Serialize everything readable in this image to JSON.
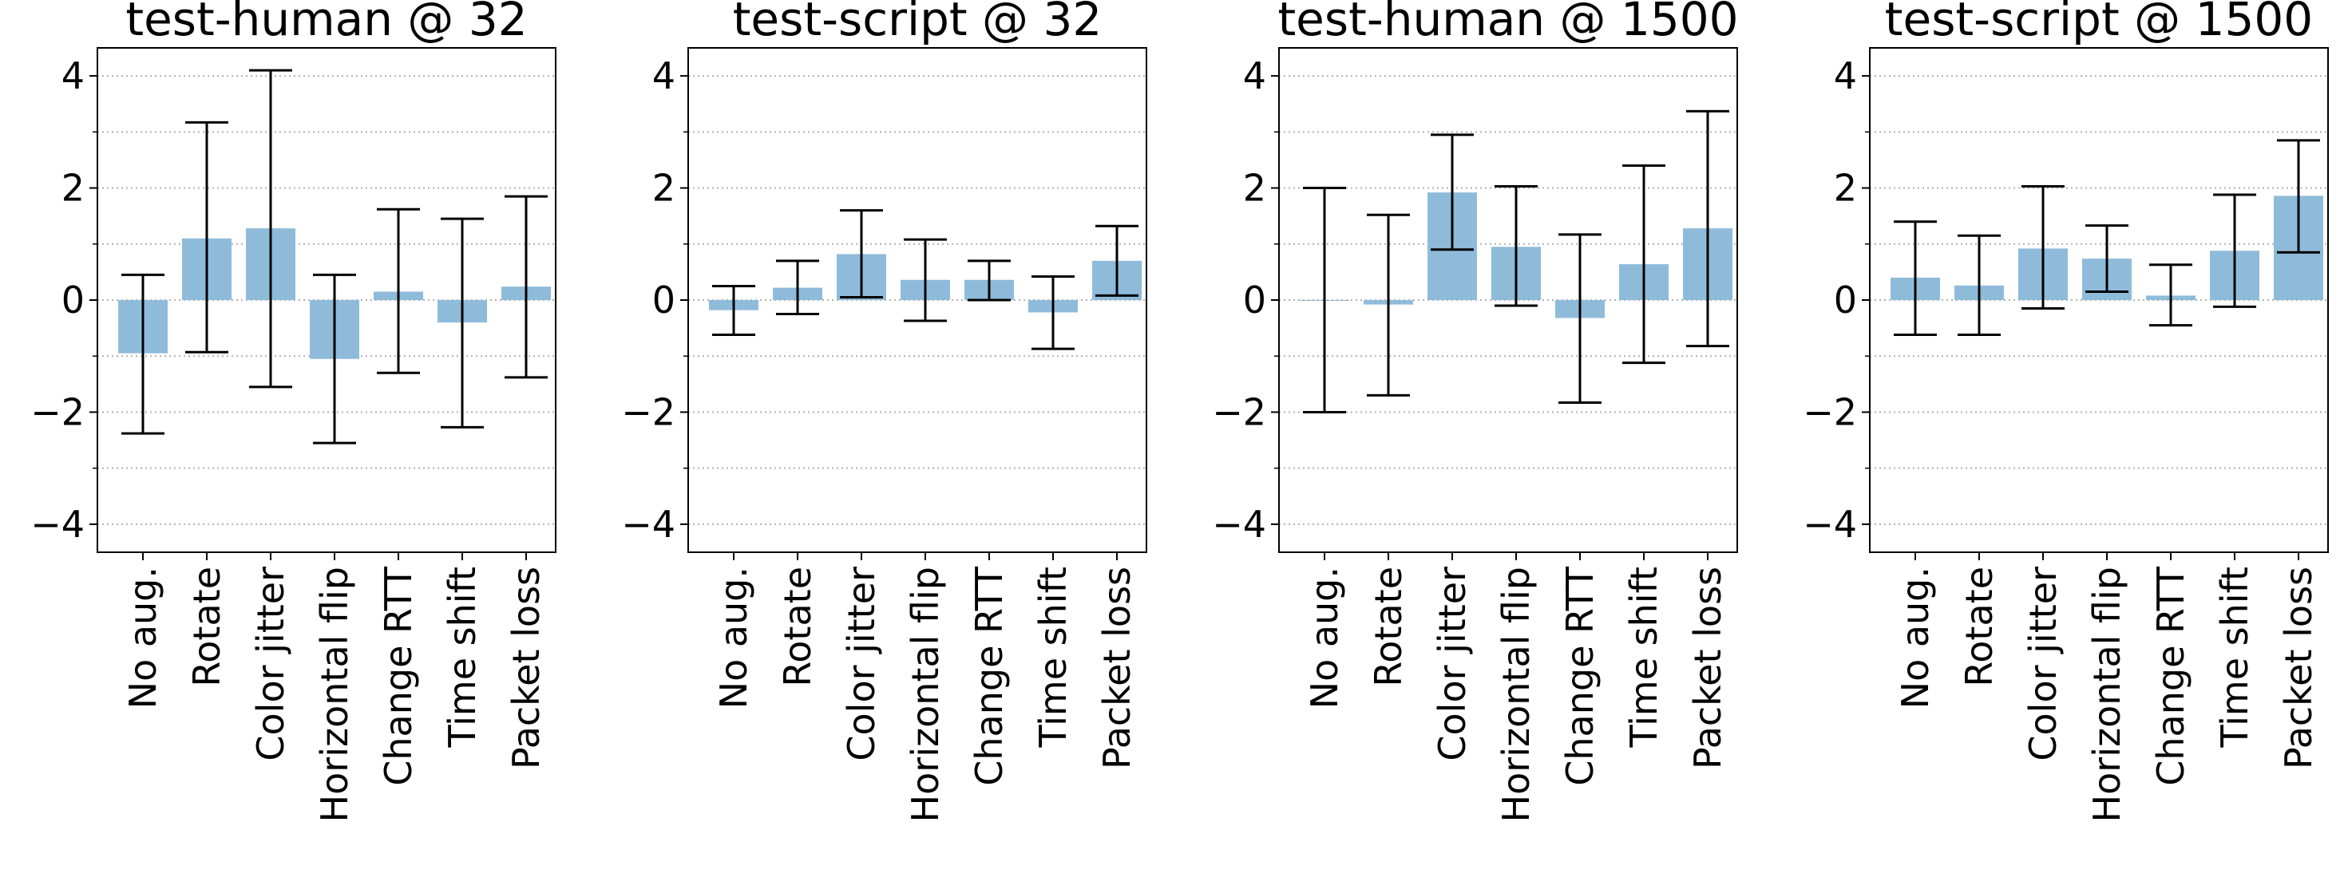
{
  "chart_data": [
    {
      "type": "bar",
      "title": "test-human @ 32",
      "categories": [
        "No aug.",
        "Rotate",
        "Color jitter",
        "Horizontal flip",
        "Change RTT",
        "Time shift",
        "Packet loss"
      ],
      "values": [
        -0.95,
        1.1,
        1.28,
        -1.05,
        0.15,
        -0.4,
        0.24
      ],
      "error_low": [
        -2.38,
        -0.93,
        -1.55,
        -2.55,
        -1.3,
        -2.27,
        -1.38
      ],
      "error_high": [
        0.45,
        3.17,
        4.1,
        0.45,
        1.62,
        1.45,
        1.85
      ],
      "ylim": [
        -4.5,
        4.5
      ],
      "yticks": [
        "−4",
        "−2",
        "0",
        "2",
        "4"
      ],
      "ytick_values": [
        -4,
        -2,
        0,
        2,
        4
      ],
      "grid": "y, minor dotted",
      "bar_color": "#8fbbdb"
    },
    {
      "type": "bar",
      "title": "test-script @ 32",
      "categories": [
        "No aug.",
        "Rotate",
        "Color jitter",
        "Horizontal flip",
        "Change RTT",
        "Time shift",
        "Packet loss"
      ],
      "values": [
        -0.18,
        0.22,
        0.82,
        0.36,
        0.36,
        -0.22,
        0.7
      ],
      "error_low": [
        -0.62,
        -0.25,
        0.05,
        -0.37,
        0.0,
        -0.87,
        0.08
      ],
      "error_high": [
        0.25,
        0.7,
        1.6,
        1.08,
        0.7,
        0.42,
        1.32
      ],
      "ylim": [
        -4.5,
        4.5
      ],
      "yticks": [
        "−4",
        "−2",
        "0",
        "2",
        "4"
      ],
      "ytick_values": [
        -4,
        -2,
        0,
        2,
        4
      ],
      "grid": "y, minor dotted",
      "bar_color": "#8fbbdb"
    },
    {
      "type": "bar",
      "title": "test-human @ 1500",
      "categories": [
        "No aug.",
        "Rotate",
        "Color jitter",
        "Horizontal flip",
        "Change RTT",
        "Time shift",
        "Packet loss"
      ],
      "values": [
        0.0,
        -0.08,
        1.92,
        0.95,
        -0.32,
        0.64,
        1.28
      ],
      "error_low": [
        -2.0,
        -1.7,
        0.9,
        -0.1,
        -1.83,
        -1.12,
        -0.82
      ],
      "error_high": [
        2.0,
        1.52,
        2.95,
        2.03,
        1.17,
        2.4,
        3.37
      ],
      "ylim": [
        -4.5,
        4.5
      ],
      "yticks": [
        "−4",
        "−2",
        "0",
        "2",
        "4"
      ],
      "ytick_values": [
        -4,
        -2,
        0,
        2,
        4
      ],
      "grid": "y, minor dotted",
      "bar_color": "#8fbbdb"
    },
    {
      "type": "bar",
      "title": "test-script @ 1500",
      "categories": [
        "No aug.",
        "Rotate",
        "Color jitter",
        "Horizontal flip",
        "Change RTT",
        "Time shift",
        "Packet loss"
      ],
      "values": [
        0.4,
        0.26,
        0.92,
        0.74,
        0.08,
        0.88,
        1.86
      ],
      "error_low": [
        -0.62,
        -0.62,
        -0.15,
        0.15,
        -0.45,
        -0.12,
        0.85
      ],
      "error_high": [
        1.4,
        1.15,
        2.03,
        1.33,
        0.63,
        1.88,
        2.85
      ],
      "ylim": [
        -4.5,
        4.5
      ],
      "yticks": [
        "−4",
        "−2",
        "0",
        "2",
        "4"
      ],
      "ytick_values": [
        -4,
        -2,
        0,
        2,
        4
      ],
      "grid": "y, minor dotted",
      "bar_color": "#8fbbdb"
    }
  ]
}
